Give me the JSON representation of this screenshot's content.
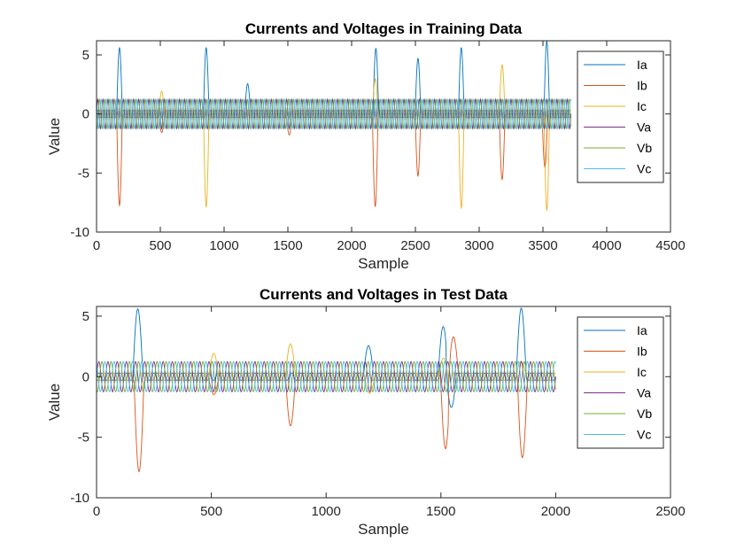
{
  "figure": {
    "background": "#ffffff",
    "series_colors": {
      "Ia": "#0072BD",
      "Ib": "#D95319",
      "Ic": "#EDB120",
      "Va": "#7E2F8E",
      "Vb": "#77AC30",
      "Vc": "#4DBEEE"
    }
  },
  "chart_data": [
    {
      "type": "line",
      "title": "Currents and Voltages in Training Data",
      "xlabel": "Sample",
      "ylabel": "Value",
      "xlim": [
        0,
        4500
      ],
      "ylim": [
        -10,
        6.2
      ],
      "xticks": [
        0,
        500,
        1000,
        1500,
        2000,
        2500,
        3000,
        3500,
        4000,
        4500
      ],
      "yticks": [
        -10,
        -5,
        0,
        5
      ],
      "legend": {
        "position": "top-right",
        "entries": [
          "Ia",
          "Ib",
          "Ic",
          "Va",
          "Vb",
          "Vc"
        ]
      },
      "grid": false,
      "n_samples": 3720,
      "baseline": {
        "voltage_amplitude": 1.25,
        "current_amplitude": 0.3,
        "cycle_length_samples": 40
      },
      "series": [
        {
          "name": "Ia",
          "spikes": [
            [
              180,
              5.6
            ],
            [
              860,
              5.6
            ],
            [
              1185,
              2.6
            ],
            [
              2190,
              5.6
            ],
            [
              2520,
              4.7
            ],
            [
              2860,
              5.6
            ],
            [
              3530,
              6.1
            ]
          ]
        },
        {
          "name": "Ib",
          "spikes": [
            [
              180,
              -7.8
            ],
            [
              510,
              -1.6
            ],
            [
              1510,
              -1.8
            ],
            [
              2185,
              -7.9
            ],
            [
              2520,
              -5.2
            ],
            [
              3180,
              -5.6
            ],
            [
              3515,
              -4.5
            ]
          ]
        },
        {
          "name": "Ic",
          "spikes": [
            [
              510,
              1.9
            ],
            [
              860,
              -7.8
            ],
            [
              1510,
              1.2
            ],
            [
              2185,
              3.0
            ],
            [
              2860,
              -7.9
            ],
            [
              3180,
              4.2
            ],
            [
              3530,
              -8.1
            ]
          ]
        },
        {
          "name": "Va",
          "amplitude": 1.25,
          "phase_deg": 0
        },
        {
          "name": "Vb",
          "amplitude": 1.25,
          "phase_deg": -120
        },
        {
          "name": "Vc",
          "amplitude": 1.25,
          "phase_deg": 120
        }
      ]
    },
    {
      "type": "line",
      "title": "Currents and Voltages in Test Data",
      "xlabel": "Sample",
      "ylabel": "Value",
      "xlim": [
        0,
        2500
      ],
      "ylim": [
        -10,
        5.8
      ],
      "xticks": [
        0,
        500,
        1000,
        1500,
        2000,
        2500
      ],
      "yticks": [
        -10,
        -5,
        0,
        5
      ],
      "legend": {
        "position": "top-right",
        "entries": [
          "Ia",
          "Ib",
          "Ic",
          "Va",
          "Vb",
          "Vc"
        ]
      },
      "grid": false,
      "n_samples": 2000,
      "baseline": {
        "voltage_amplitude": 1.25,
        "current_amplitude": 0.3,
        "cycle_length_samples": 40
      },
      "series": [
        {
          "name": "Ia",
          "spikes": [
            [
              180,
              5.6
            ],
            [
              1185,
              2.6
            ],
            [
              1510,
              4.2
            ],
            [
              1545,
              -2.5
            ],
            [
              1850,
              5.6
            ]
          ]
        },
        {
          "name": "Ib",
          "spikes": [
            [
              185,
              -7.9
            ],
            [
              510,
              -1.5
            ],
            [
              845,
              -4.0
            ],
            [
              1520,
              -5.9
            ],
            [
              1555,
              3.3
            ],
            [
              1855,
              -6.7
            ]
          ]
        },
        {
          "name": "Ic",
          "spikes": [
            [
              510,
              1.9
            ],
            [
              845,
              2.7
            ],
            [
              1190,
              -1.4
            ],
            [
              1510,
              1.5
            ],
            [
              1850,
              1.3
            ]
          ]
        },
        {
          "name": "Va",
          "amplitude": 1.25,
          "phase_deg": 0
        },
        {
          "name": "Vb",
          "amplitude": 1.25,
          "phase_deg": -120
        },
        {
          "name": "Vc",
          "amplitude": 1.25,
          "phase_deg": 120
        }
      ]
    }
  ]
}
